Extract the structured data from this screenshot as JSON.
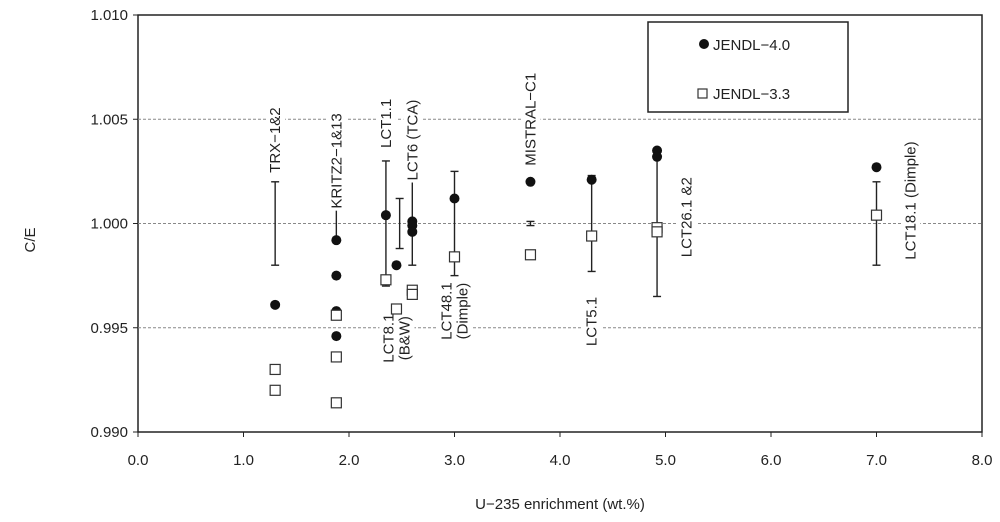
{
  "chart_data": {
    "type": "scatter",
    "xlabel": "U−235 enrichment (wt.%)",
    "ylabel": "C/E",
    "xlim": [
      0,
      8
    ],
    "ylim": [
      0.99,
      1.01
    ],
    "x_ticks": [
      "0.0",
      "1.0",
      "2.0",
      "3.0",
      "4.0",
      "5.0",
      "6.0",
      "7.0",
      "8.0"
    ],
    "y_ticks": [
      "0.990",
      "0.995",
      "1.000",
      "1.005",
      "1.010"
    ],
    "gridlines_y": [
      0.995,
      1.0,
      1.005
    ],
    "legend_position": "top-right",
    "series": [
      {
        "name": "JENDL−4.0",
        "marker": "filled-circle",
        "color": "#111111",
        "points": [
          {
            "x": 1.3,
            "y": 0.9961
          },
          {
            "x": 1.88,
            "y": 0.9992
          },
          {
            "x": 1.88,
            "y": 0.9975
          },
          {
            "x": 1.88,
            "y": 0.9958
          },
          {
            "x": 1.88,
            "y": 0.9946
          },
          {
            "x": 2.35,
            "y": 1.0004
          },
          {
            "x": 2.45,
            "y": 0.998
          },
          {
            "x": 2.6,
            "y": 1.0001
          },
          {
            "x": 2.6,
            "y": 0.9999
          },
          {
            "x": 2.6,
            "y": 0.9996
          },
          {
            "x": 3.0,
            "y": 1.0012
          },
          {
            "x": 3.72,
            "y": 1.002
          },
          {
            "x": 4.3,
            "y": 1.0021
          },
          {
            "x": 4.92,
            "y": 1.0035
          },
          {
            "x": 4.92,
            "y": 1.0032
          },
          {
            "x": 7.0,
            "y": 1.0027
          }
        ]
      },
      {
        "name": "JENDL−3.3",
        "marker": "open-square",
        "color": "#111111",
        "points": [
          {
            "x": 1.3,
            "y": 0.993
          },
          {
            "x": 1.3,
            "y": 0.992
          },
          {
            "x": 1.88,
            "y": 0.9956
          },
          {
            "x": 1.88,
            "y": 0.9936
          },
          {
            "x": 1.88,
            "y": 0.9914
          },
          {
            "x": 2.35,
            "y": 0.9973
          },
          {
            "x": 2.45,
            "y": 0.9959
          },
          {
            "x": 2.6,
            "y": 0.9968
          },
          {
            "x": 2.6,
            "y": 0.9966
          },
          {
            "x": 3.0,
            "y": 0.9984
          },
          {
            "x": 3.72,
            "y": 0.9985
          },
          {
            "x": 4.3,
            "y": 0.9994
          },
          {
            "x": 4.92,
            "y": 0.9998
          },
          {
            "x": 4.92,
            "y": 0.9996
          },
          {
            "x": 7.0,
            "y": 1.0004
          }
        ]
      }
    ],
    "error_bars": [
      {
        "x": 1.3,
        "low": 0.998,
        "high": 1.002
      },
      {
        "x": 1.88,
        "low": 0.9993,
        "high": 1.0007
      },
      {
        "x": 2.35,
        "low": 0.997,
        "high": 1.003
      },
      {
        "x": 2.48,
        "low": 0.9988,
        "high": 1.0012
      },
      {
        "x": 2.6,
        "low": 0.998,
        "high": 1.002
      },
      {
        "x": 3.0,
        "low": 0.9975,
        "high": 1.0025
      },
      {
        "x": 3.72,
        "low": 0.9999,
        "high": 1.0001
      },
      {
        "x": 4.3,
        "low": 0.9977,
        "high": 1.0023
      },
      {
        "x": 4.92,
        "low": 0.9965,
        "high": 1.0035
      },
      {
        "x": 7.0,
        "low": 0.998,
        "high": 1.002
      }
    ],
    "annotations": [
      {
        "lines": [
          "TRX−1&2"
        ],
        "x": 1.3,
        "y": 1.004,
        "rotate": -90
      },
      {
        "lines": [
          "KRITZ2−1&13"
        ],
        "x": 1.88,
        "y": 1.003,
        "rotate": -90
      },
      {
        "lines": [
          "LCT1.1"
        ],
        "x": 2.35,
        "y": 1.0048,
        "rotate": -90
      },
      {
        "lines": [
          "LCT6 (TCA)"
        ],
        "x": 2.6,
        "y": 1.004,
        "rotate": -90
      },
      {
        "lines": [
          "MISTRAL−C1"
        ],
        "x": 3.72,
        "y": 1.005,
        "rotate": -90
      },
      {
        "lines": [
          "LCT26.1 &2"
        ],
        "x": 5.2,
        "y": 1.0003,
        "rotate": -90
      },
      {
        "lines": [
          "LCT18.1 (Dimple)"
        ],
        "x": 7.32,
        "y": 1.0011,
        "rotate": -90
      },
      {
        "lines": [
          "LCT8.1",
          "(B&W)"
        ],
        "x": 2.45,
        "y": 0.9945,
        "rotate": -90
      },
      {
        "lines": [
          "LCT48.1",
          "(Dimple)"
        ],
        "x": 3.0,
        "y": 0.9958,
        "rotate": -90
      },
      {
        "lines": [
          "LCT5.1"
        ],
        "x": 4.3,
        "y": 0.9953,
        "rotate": -90
      }
    ]
  }
}
